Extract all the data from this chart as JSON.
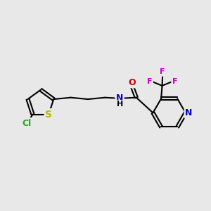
{
  "background_color": "#e8e8e8",
  "bond_color": "#000000",
  "bond_width": 1.5,
  "atom_colors": {
    "S": "#bbbb00",
    "Cl": "#22aa22",
    "N": "#0000cc",
    "O": "#cc0000",
    "F": "#cc00cc",
    "C": "#000000"
  },
  "font_size_atom": 9
}
